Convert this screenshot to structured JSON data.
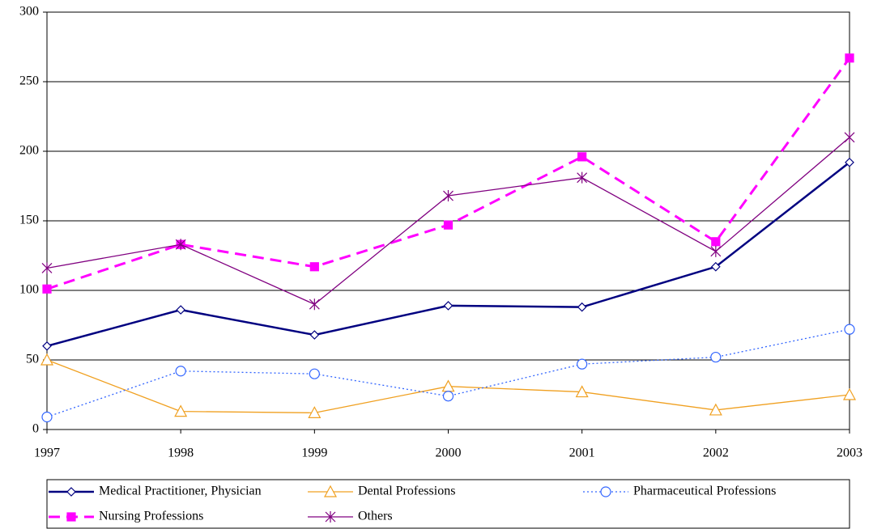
{
  "chart_data": {
    "type": "line",
    "categories": [
      "1997",
      "1998",
      "1999",
      "2000",
      "2001",
      "2002",
      "2003"
    ],
    "series": [
      {
        "name": "Medical Practitioner, Physician",
        "color": "#000080",
        "marker": "diamond",
        "dash": "solid",
        "values": [
          60,
          86,
          68,
          89,
          88,
          117,
          192
        ]
      },
      {
        "name": "Dental Professions",
        "color": "#f0a020",
        "marker": "triangle",
        "dash": "solid",
        "values": [
          50,
          13,
          12,
          31,
          27,
          14,
          25
        ]
      },
      {
        "name": "Pharmaceutical Professions",
        "color": "#3366ff",
        "marker": "circle",
        "dash": "dotted",
        "values": [
          9,
          42,
          40,
          24,
          47,
          52,
          72
        ]
      },
      {
        "name": "Nursing Professions",
        "color": "#ff00ff",
        "marker": "square",
        "dash": "dashed",
        "values": [
          101,
          133,
          117,
          147,
          196,
          135,
          267
        ]
      },
      {
        "name": "Others",
        "color": "#800080",
        "marker": "asterisk",
        "dash": "solid",
        "values": [
          116,
          133,
          90,
          168,
          181,
          128,
          210
        ]
      }
    ],
    "ylim": [
      0,
      300
    ],
    "yticks": [
      0,
      50,
      100,
      150,
      200,
      250,
      300
    ],
    "grid": true,
    "legend": "bottom"
  }
}
